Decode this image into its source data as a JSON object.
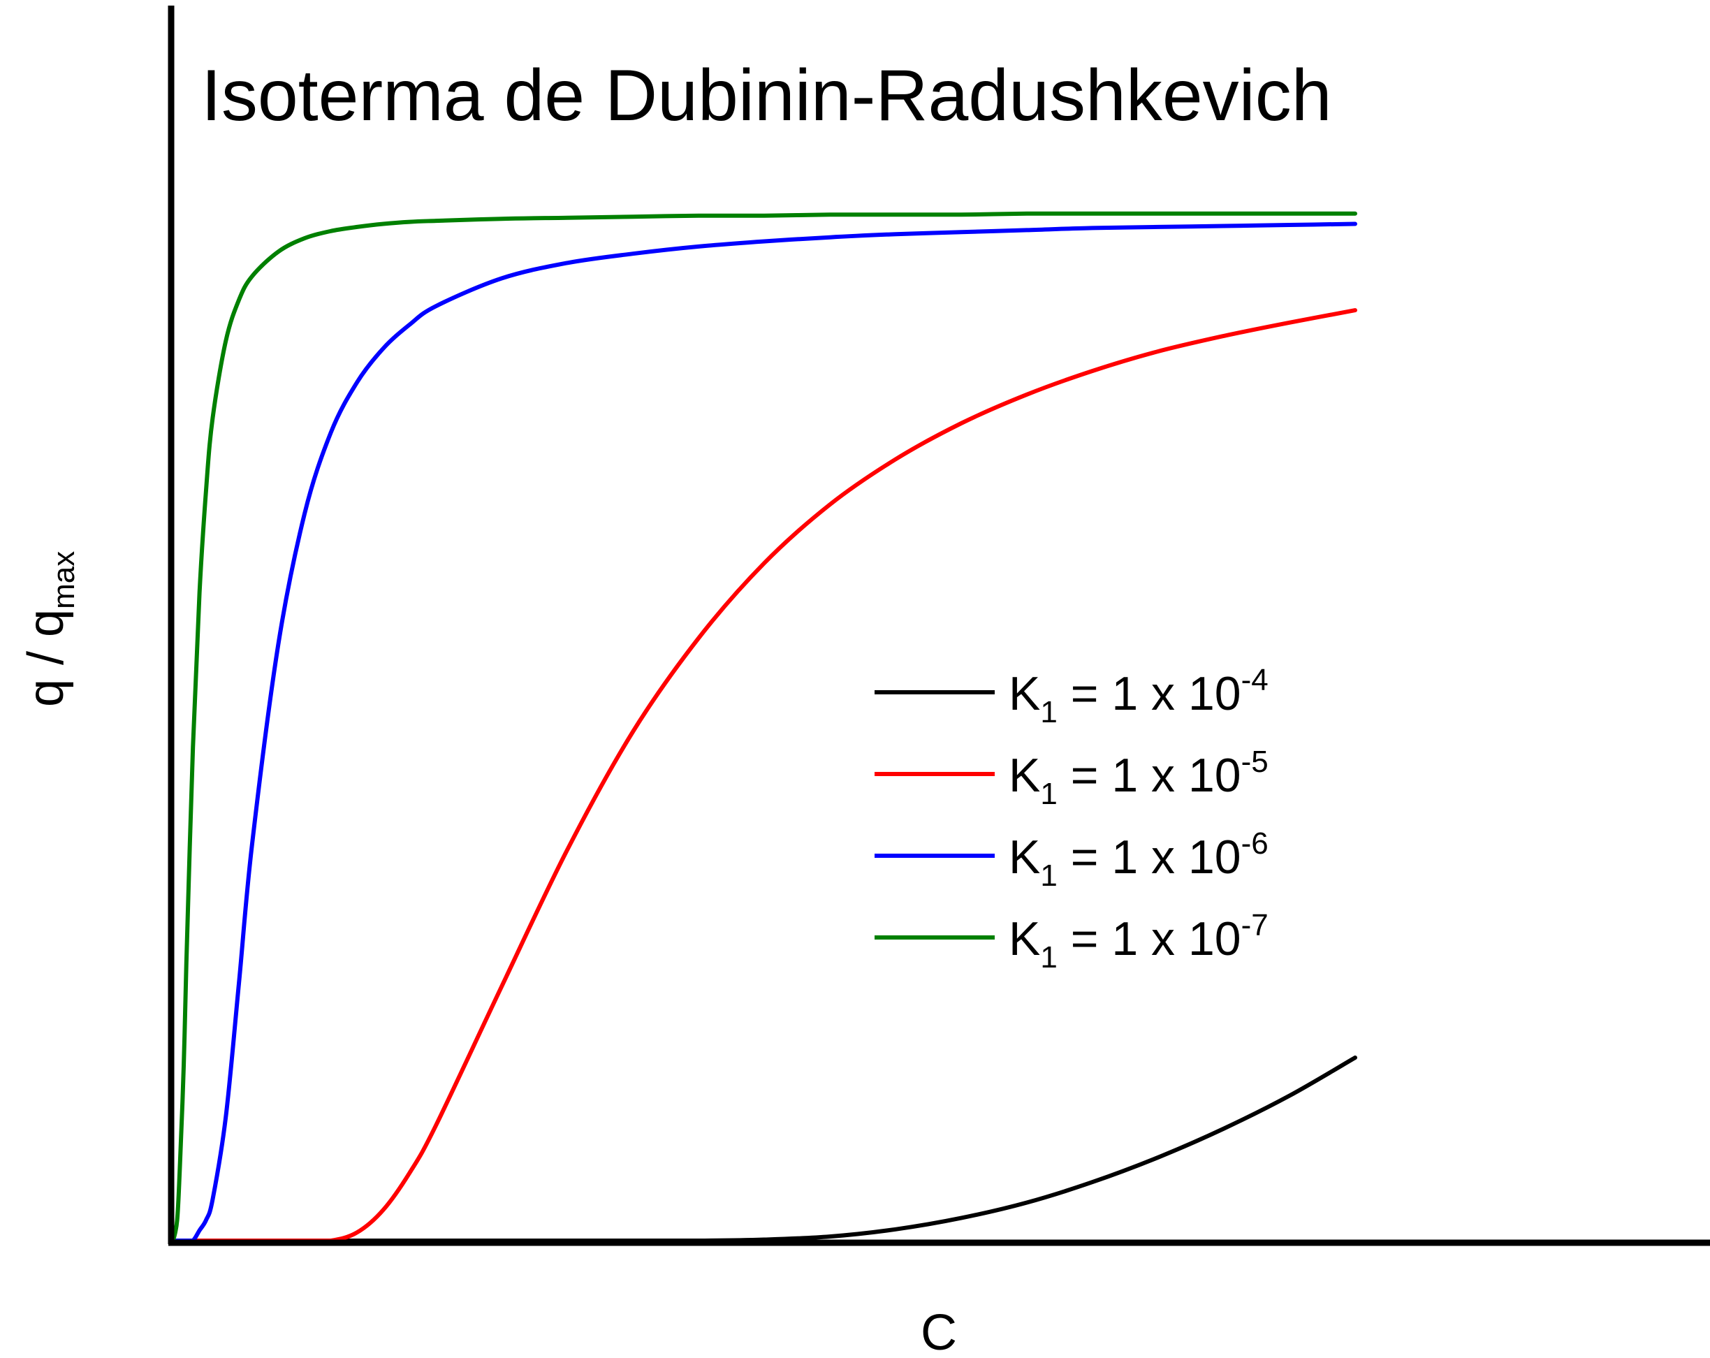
{
  "chart_data": {
    "type": "line",
    "title": "Isoterma de Dubinin-Radushkevich",
    "xlabel": "C",
    "ylabel": {
      "main": "q / q",
      "subscript": "max"
    },
    "xlim": [
      0,
      1
    ],
    "ylim": [
      0,
      1.2
    ],
    "axis_tick_labels": false,
    "grid": false,
    "legend_position": "center-right",
    "x": [
      0,
      0.003,
      0.005,
      0.008,
      0.01,
      0.015,
      0.02,
      0.025,
      0.03,
      0.04,
      0.05,
      0.06,
      0.08,
      0.1,
      0.12,
      0.14,
      0.16,
      0.18,
      0.2,
      0.25,
      0.3,
      0.35,
      0.4,
      0.45,
      0.5,
      0.55,
      0.6,
      0.65,
      0.7,
      0.75,
      0.8,
      0.85,
      0.9
    ],
    "series": [
      {
        "name": "K1 = 1 x 10-4",
        "legend": {
          "base": "K",
          "sub": "1",
          "text": " = 1 x 10",
          "sup": "-4"
        },
        "color": "#000000",
        "values": [
          0,
          0,
          0,
          0,
          0,
          0,
          0,
          0,
          0,
          0,
          0,
          0,
          0,
          0,
          0,
          0,
          0,
          0,
          0,
          0,
          0,
          0,
          0,
          0.001,
          0.004,
          0.011,
          0.022,
          0.037,
          0.057,
          0.081,
          0.109,
          0.141,
          0.178
        ]
      },
      {
        "name": "K1 = 1 x 10-5",
        "legend": {
          "base": "K",
          "sub": "1",
          "text": " = 1 x 10",
          "sup": "-5"
        },
        "color": "#ff0000",
        "values": [
          0,
          0,
          0,
          0,
          0,
          0,
          0,
          0,
          0,
          0,
          0,
          0,
          0,
          0,
          0,
          0.008,
          0.03,
          0.066,
          0.112,
          0.247,
          0.38,
          0.495,
          0.586,
          0.659,
          0.716,
          0.76,
          0.795,
          0.823,
          0.846,
          0.865,
          0.88,
          0.893,
          0.905
        ]
      },
      {
        "name": "K1 = 1 x 10-6",
        "legend": {
          "base": "K",
          "sub": "1",
          "text": " = 1 x 10",
          "sup": "-6"
        },
        "color": "#0000ff",
        "values": [
          0,
          0,
          0,
          0,
          0,
          0,
          0.01,
          0.02,
          0.04,
          0.12,
          0.25,
          0.385,
          0.58,
          0.707,
          0.786,
          0.835,
          0.868,
          0.891,
          0.909,
          0.936,
          0.951,
          0.96,
          0.967,
          0.972,
          0.976,
          0.979,
          0.981,
          0.983,
          0.985,
          0.986,
          0.987,
          0.988,
          0.989
        ]
      },
      {
        "name": "K1 = 1 x 10-7",
        "legend": {
          "base": "K",
          "sub": "1",
          "text": " = 1 x 10",
          "sup": "-7"
        },
        "color": "#008000",
        "values": [
          0,
          0.02,
          0.07,
          0.17,
          0.27,
          0.48,
          0.63,
          0.73,
          0.8,
          0.875,
          0.915,
          0.938,
          0.962,
          0.975,
          0.982,
          0.986,
          0.989,
          0.991,
          0.992,
          0.994,
          0.995,
          0.996,
          0.997,
          0.997,
          0.998,
          0.998,
          0.998,
          0.999,
          0.999,
          0.999,
          0.999,
          0.999,
          0.999
        ]
      }
    ]
  }
}
